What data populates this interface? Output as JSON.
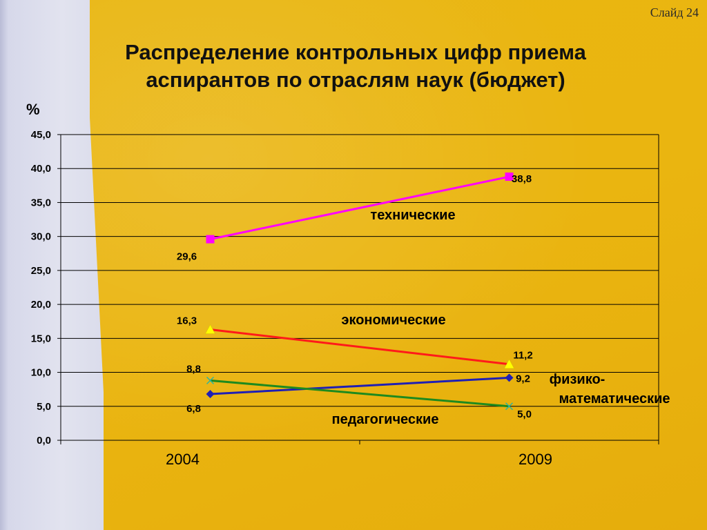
{
  "slide_label": "Слайд 24",
  "title_lines": [
    "Распределение контрольных цифр приема",
    "аспирантов по отраслям наук (бюджет)"
  ],
  "chart_data": {
    "type": "line",
    "ylabel": "%",
    "ylim": [
      0,
      45
    ],
    "ytick_step": 5,
    "ytick_labels": [
      "0,0",
      "5,0",
      "10,0",
      "15,0",
      "20,0",
      "25,0",
      "30,0",
      "35,0",
      "40,0",
      "45,0"
    ],
    "categories": [
      "2004",
      "2009"
    ],
    "grid": true,
    "series": [
      {
        "name": "технические",
        "values": [
          29.6,
          38.8
        ],
        "labels": [
          "29,6",
          "38,8"
        ],
        "color": "#FF00FF",
        "marker": "square"
      },
      {
        "name": "экономические",
        "values": [
          16.3,
          11.2
        ],
        "labels": [
          "16,3",
          "11,2"
        ],
        "color": "#FF1A1A",
        "marker": "triangle"
      },
      {
        "name": "физико-математические",
        "name_lines": [
          "физико-",
          "математические"
        ],
        "values": [
          6.8,
          9.2
        ],
        "labels": [
          "6,8",
          "9,2"
        ],
        "color": "#1F1FB4",
        "marker": "diamond"
      },
      {
        "name": "педагогические",
        "values": [
          8.8,
          5.0
        ],
        "labels": [
          "8,8",
          "5,0"
        ],
        "color": "#1E8A1E",
        "marker": "cross"
      }
    ]
  }
}
